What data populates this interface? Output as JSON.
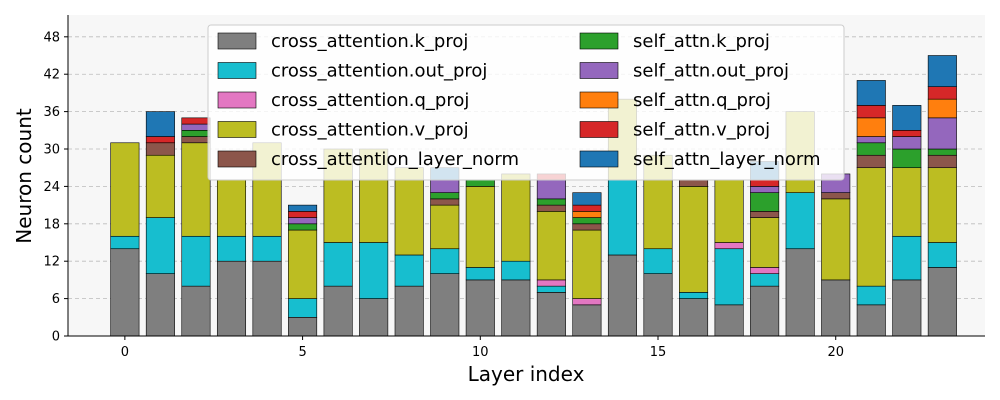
{
  "chart_data": {
    "type": "bar",
    "stacked": true,
    "title": "",
    "xlabel": "Layer index",
    "ylabel": "Neuron count",
    "xlim": [
      -1.6,
      24.2
    ],
    "ylim": [
      0,
      51.5
    ],
    "x_ticks": [
      0,
      5,
      10,
      15,
      20
    ],
    "y_ticks": [
      0,
      6,
      12,
      18,
      24,
      30,
      36,
      42,
      48
    ],
    "grid": "horizontal dashed",
    "legend_position": "top-center",
    "legend_columns": 2,
    "x": [
      0,
      1,
      2,
      3,
      4,
      5,
      6,
      7,
      8,
      9,
      10,
      11,
      12,
      13,
      14,
      15,
      16,
      17,
      18,
      19,
      20,
      21,
      22,
      23
    ],
    "series": [
      {
        "name": "cross_attention.k_proj",
        "color": "#7f7f7f",
        "values": [
          14,
          10,
          8,
          12,
          12,
          3,
          8,
          6,
          8,
          10,
          9,
          9,
          7,
          5,
          13,
          10,
          6,
          5,
          8,
          14,
          9,
          5,
          9,
          11
        ]
      },
      {
        "name": "cross_attention.out_proj",
        "color": "#17becf",
        "values": [
          2,
          9,
          8,
          4,
          4,
          3,
          7,
          9,
          5,
          4,
          2,
          3,
          1,
          0,
          12,
          4,
          1,
          9,
          2,
          9,
          0,
          3,
          7,
          4
        ]
      },
      {
        "name": "cross_attention.q_proj",
        "color": "#e377c2",
        "values": [
          0,
          0,
          0,
          0,
          0,
          0,
          0,
          0,
          0,
          0,
          0,
          0,
          1,
          1,
          0,
          0,
          0,
          1,
          1,
          0,
          0,
          0,
          0,
          0
        ]
      },
      {
        "name": "cross_attention.v_proj",
        "color": "#bcbd22",
        "values": [
          15,
          10,
          15,
          9,
          15,
          11,
          15,
          15,
          14,
          7,
          13,
          14,
          11,
          11,
          13,
          15,
          17,
          10,
          8,
          13,
          13,
          19,
          11,
          12
        ]
      },
      {
        "name": "cross_attention_layer_norm",
        "color": "#8c564b",
        "values": [
          0,
          2,
          1,
          0,
          0,
          0,
          0,
          0,
          0,
          1,
          0,
          0,
          1,
          1,
          0,
          0,
          1,
          0,
          1,
          0,
          1,
          2,
          0,
          2
        ]
      },
      {
        "name": "self_attn.k_proj",
        "color": "#2ca02c",
        "values": [
          0,
          0,
          1,
          0,
          0,
          1,
          0,
          0,
          0,
          1,
          1,
          0,
          1,
          1,
          0,
          0,
          0,
          0,
          3,
          0,
          0,
          2,
          3,
          1
        ]
      },
      {
        "name": "self_attn.out_proj",
        "color": "#9467bd",
        "values": [
          0,
          0,
          1,
          0,
          0,
          1,
          0,
          0,
          0,
          2,
          0,
          0,
          3,
          0,
          0,
          0,
          0,
          0,
          1,
          0,
          3,
          1,
          2,
          5
        ]
      },
      {
        "name": "self_attn.q_proj",
        "color": "#ff7f0e",
        "values": [
          0,
          0,
          0,
          0,
          0,
          0,
          0,
          0,
          0,
          0,
          0,
          0,
          0,
          1,
          0,
          0,
          0,
          0,
          0,
          0,
          0,
          3,
          0,
          3
        ]
      },
      {
        "name": "self_attn.v_proj",
        "color": "#d62728",
        "values": [
          0,
          1,
          1,
          0,
          0,
          1,
          0,
          0,
          0,
          0,
          0,
          0,
          1,
          1,
          0,
          0,
          0,
          0,
          1,
          0,
          0,
          2,
          1,
          2
        ]
      },
      {
        "name": "self_attn_layer_norm",
        "color": "#1f77b4",
        "values": [
          0,
          4,
          0,
          0,
          0,
          1,
          0,
          0,
          0,
          2,
          0,
          0,
          0,
          2,
          0,
          0,
          0,
          0,
          3,
          0,
          0,
          4,
          4,
          5
        ]
      }
    ]
  }
}
